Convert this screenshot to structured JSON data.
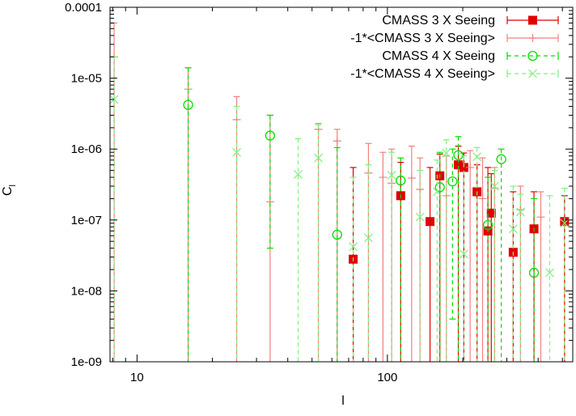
{
  "chart_data": {
    "type": "scatter",
    "title": "",
    "xlabel": "l",
    "ylabel": "C",
    "ylabel_subscript": "l",
    "xscale": "log",
    "yscale": "log",
    "xlim": [
      7.8,
      550
    ],
    "ylim": [
      1e-09,
      0.0001
    ],
    "x_ticks": [
      {
        "value": 10,
        "label": "10"
      },
      {
        "value": 100,
        "label": "100"
      }
    ],
    "y_ticks": [
      {
        "value": 0.0001,
        "label": "0.0001"
      },
      {
        "value": 1e-05,
        "label": "1e-05"
      },
      {
        "value": 1e-06,
        "label": "1e-06"
      },
      {
        "value": 1e-07,
        "label": "1e-07"
      },
      {
        "value": 1e-08,
        "label": "1e-08"
      },
      {
        "value": 1e-09,
        "label": "1e-09"
      }
    ],
    "legend_position": "top-right",
    "series": [
      {
        "name": "CMASS 3 X Seeing",
        "color": "#e00000",
        "marker": "filled-square",
        "style": "solid",
        "points": [
          {
            "x": 73,
            "y": 2.8e-08,
            "ylo": 1e-09,
            "yhi": 5.5e-07
          },
          {
            "x": 113,
            "y": 2.2e-07,
            "ylo": 1e-09,
            "yhi": 6.5e-07
          },
          {
            "x": 148,
            "y": 9.5e-08,
            "ylo": 1e-09,
            "yhi": 5.5e-07
          },
          {
            "x": 162,
            "y": 4.2e-07,
            "ylo": 1e-09,
            "yhi": 8.5e-07
          },
          {
            "x": 192,
            "y": 6e-07,
            "ylo": 1e-09,
            "yhi": 1.1e-06
          },
          {
            "x": 202,
            "y": 5.5e-07,
            "ylo": 1e-09,
            "yhi": 8.8e-07
          },
          {
            "x": 228,
            "y": 2.5e-07,
            "ylo": 1e-09,
            "yhi": 6e-07
          },
          {
            "x": 252,
            "y": 7e-08,
            "ylo": 1e-09,
            "yhi": 5.5e-07
          },
          {
            "x": 260,
            "y": 1.25e-07,
            "ylo": 1e-09,
            "yhi": 4.5e-07
          },
          {
            "x": 318,
            "y": 3.5e-08,
            "ylo": 1e-09,
            "yhi": 2.5e-07
          },
          {
            "x": 385,
            "y": 7.5e-08,
            "ylo": 1e-09,
            "yhi": 2.5e-07
          },
          {
            "x": 510,
            "y": 9.5e-08,
            "ylo": 1e-09,
            "yhi": 2.2e-07
          }
        ]
      },
      {
        "name": "-1*<CMASS 3 X Seeing>",
        "color": "#f08080",
        "marker": "plus",
        "style": "solid",
        "points": [
          {
            "x": 8.1,
            "y": 2e-05,
            "ylo": 1e-09,
            "yhi": 6e-05
          },
          {
            "x": 16,
            "y": 7e-06,
            "ylo": 1e-09,
            "yhi": 1.4e-05
          },
          {
            "x": 25,
            "y": 2.6e-06,
            "ylo": 1e-09,
            "yhi": 5.5e-06
          },
          {
            "x": 34,
            "y": 1.8e-07,
            "ylo": 1e-09,
            "yhi": 3e-06
          },
          {
            "x": 53,
            "y": 1.9e-06,
            "ylo": 1e-09,
            "yhi": 2.3e-06
          },
          {
            "x": 63,
            "y": 1.3e-06,
            "ylo": 1e-09,
            "yhi": 1.9e-06
          },
          {
            "x": 84,
            "y": 4.6e-07,
            "ylo": 1e-09,
            "yhi": 1.2e-06
          },
          {
            "x": 96,
            "y": 4e-07,
            "ylo": 1e-09,
            "yhi": 9e-07
          },
          {
            "x": 104,
            "y": 3.3e-07,
            "ylo": 1e-09,
            "yhi": 1e-06
          },
          {
            "x": 125,
            "y": 3.9e-07,
            "ylo": 1e-09,
            "yhi": 1.1e-06
          },
          {
            "x": 135,
            "y": 2.7e-07,
            "ylo": 1e-09,
            "yhi": 7.5e-07
          },
          {
            "x": 172,
            "y": 2.2e-07,
            "ylo": 1e-09,
            "yhi": 8e-07
          },
          {
            "x": 214,
            "y": 5.5e-07,
            "ylo": 1e-09,
            "yhi": 9.5e-07
          },
          {
            "x": 240,
            "y": 2e-07,
            "ylo": 1e-09,
            "yhi": 7.5e-07
          },
          {
            "x": 268,
            "y": 2.8e-07,
            "ylo": 1e-09,
            "yhi": 5.5e-07
          },
          {
            "x": 340,
            "y": 1.4e-07,
            "ylo": 1e-09,
            "yhi": 3e-07
          },
          {
            "x": 410,
            "y": 1.1e-07,
            "ylo": 1e-09,
            "yhi": 2.5e-07
          }
        ]
      },
      {
        "name": "CMASS 4 X Seeing",
        "color": "#00e000",
        "marker": "open-circle",
        "style": "dashed",
        "points": [
          {
            "x": 16,
            "y": 4.2e-06,
            "ylo": 1e-09,
            "yhi": 1.4e-05
          },
          {
            "x": 34,
            "y": 1.55e-06,
            "ylo": 4e-08,
            "yhi": 3e-06
          },
          {
            "x": 63,
            "y": 6.2e-08,
            "ylo": 1e-09,
            "yhi": 1.05e-06
          },
          {
            "x": 113,
            "y": 3.6e-07,
            "ylo": 1e-09,
            "yhi": 7.5e-07
          },
          {
            "x": 162,
            "y": 2.9e-07,
            "ylo": 1e-09,
            "yhi": 9e-07
          },
          {
            "x": 182,
            "y": 3.5e-07,
            "ylo": 4e-09,
            "yhi": 1e-06
          },
          {
            "x": 192,
            "y": 8.2e-07,
            "ylo": 1e-09,
            "yhi": 1.5e-06
          },
          {
            "x": 252,
            "y": 8.5e-08,
            "ylo": 1e-09,
            "yhi": 4e-07
          },
          {
            "x": 285,
            "y": 7.2e-07,
            "ylo": 1e-09,
            "yhi": 1e-06
          },
          {
            "x": 385,
            "y": 1.8e-08,
            "ylo": 1e-09,
            "yhi": 2e-07
          }
        ]
      },
      {
        "name": "-1*<CMASS 4 X Seeing>",
        "color": "#80f080",
        "marker": "x-cross",
        "style": "dashed",
        "points": [
          {
            "x": 8.1,
            "y": 5e-06,
            "ylo": 1e-09,
            "yhi": 2e-05
          },
          {
            "x": 25,
            "y": 9e-07,
            "ylo": 1e-09,
            "yhi": 4e-06
          },
          {
            "x": 44,
            "y": 4.4e-07,
            "ylo": 1e-09,
            "yhi": 1.4e-06
          },
          {
            "x": 53,
            "y": 7.5e-07,
            "ylo": 1e-09,
            "yhi": 2.2e-06
          },
          {
            "x": 73,
            "y": 4.2e-08,
            "ylo": 1e-09,
            "yhi": 4e-07
          },
          {
            "x": 84,
            "y": 5.6e-08,
            "ylo": 1e-09,
            "yhi": 6e-07
          },
          {
            "x": 104,
            "y": 4.3e-07,
            "ylo": 1e-09,
            "yhi": 9e-07
          },
          {
            "x": 135,
            "y": 1.1e-07,
            "ylo": 1e-09,
            "yhi": 5e-07
          },
          {
            "x": 158,
            "y": 2.5e-07,
            "ylo": 1e-09,
            "yhi": 7e-07
          },
          {
            "x": 172,
            "y": 8.8e-07,
            "ylo": 1e-09,
            "yhi": 1.35e-06
          },
          {
            "x": 202,
            "y": 3.3e-08,
            "ylo": 1e-09,
            "yhi": 8e-07
          },
          {
            "x": 228,
            "y": 7.8e-07,
            "ylo": 1e-09,
            "yhi": 1.05e-06
          },
          {
            "x": 268,
            "y": 3e-07,
            "ylo": 1e-09,
            "yhi": 5e-07
          },
          {
            "x": 318,
            "y": 7.5e-08,
            "ylo": 1e-09,
            "yhi": 3e-07
          },
          {
            "x": 340,
            "y": 1.3e-07,
            "ylo": 1e-09,
            "yhi": 2.3e-07
          },
          {
            "x": 445,
            "y": 1.8e-08,
            "ylo": 1e-09,
            "yhi": 2.2e-07
          },
          {
            "x": 510,
            "y": 9e-08,
            "ylo": 1e-09,
            "yhi": 2.8e-07
          }
        ]
      }
    ]
  }
}
